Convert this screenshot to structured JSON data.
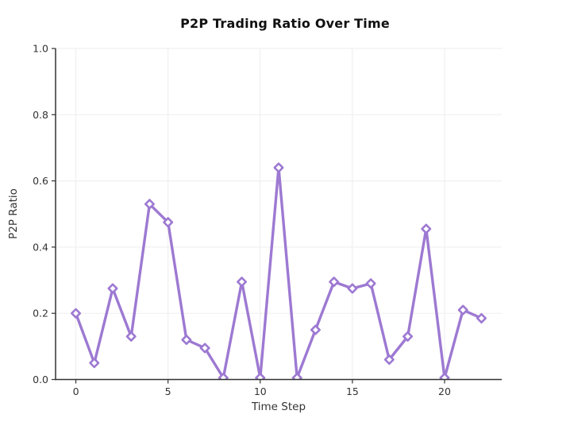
{
  "chart_data": {
    "type": "line",
    "title": "P2P Trading Ratio Over Time",
    "xlabel": "Time Step",
    "ylabel": "P2P Ratio",
    "x": [
      0,
      1,
      2,
      3,
      4,
      5,
      6,
      7,
      8,
      9,
      10,
      11,
      12,
      13,
      14,
      15,
      16,
      17,
      18,
      19,
      20,
      21,
      22
    ],
    "y": [
      0.2,
      0.05,
      0.275,
      0.13,
      0.53,
      0.475,
      0.12,
      0.095,
      0.005,
      0.295,
      0.005,
      0.64,
      0.005,
      0.15,
      0.295,
      0.275,
      0.29,
      0.06,
      0.13,
      0.455,
      0.005,
      0.21,
      0.185
    ],
    "xlim": [
      -1.1,
      23.1
    ],
    "ylim": [
      0.0,
      1.0
    ],
    "xticks": [
      0,
      5,
      10,
      15,
      20
    ],
    "yticks": [
      0.0,
      0.2,
      0.4,
      0.6,
      0.8,
      1.0
    ],
    "ytick_labels": [
      "0.0",
      "0.2",
      "0.4",
      "0.6",
      "0.8",
      "1.0"
    ],
    "grid": true,
    "legend": "none",
    "marker": "diamond",
    "line_color": "#9d79d2",
    "marker_fill": "#ffffff",
    "grid_color": "#f0f0f0",
    "axis_color": "#333333",
    "background_color": "#ffffff"
  }
}
